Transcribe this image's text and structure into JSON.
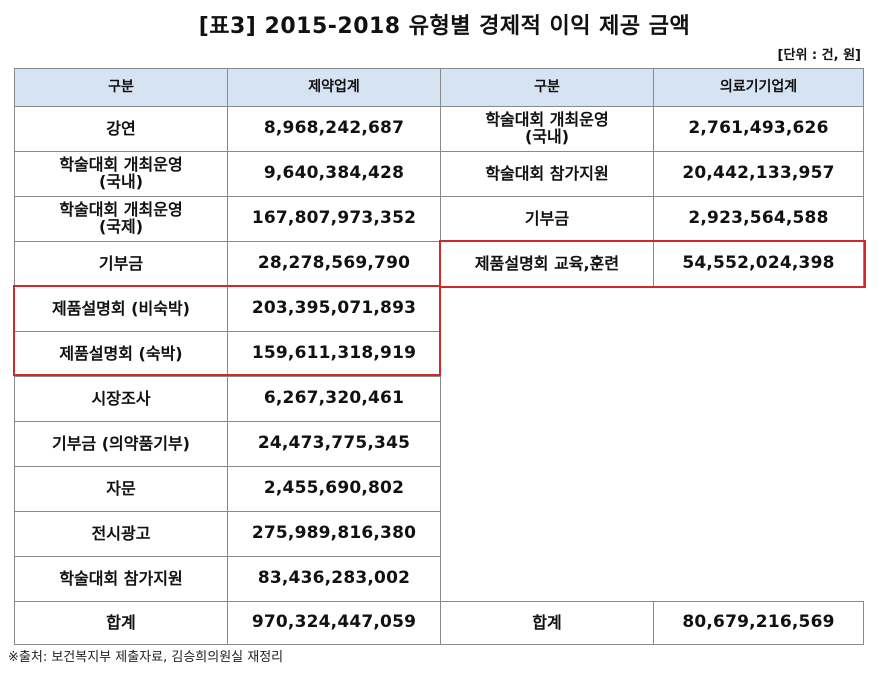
{
  "title": "[표3] 2015-2018 유형별 경제적 이익 제공 금액",
  "unit": "[단위 : 건, 원]",
  "headers": {
    "left_category": "구분",
    "left_value": "제약업계",
    "right_category": "구분",
    "right_value": "의료기기업계"
  },
  "left_rows": [
    {
      "label": "강연",
      "value": "8,968,242,687"
    },
    {
      "label": "학술대회 개최운영\n(국내)",
      "value": "9,640,384,428"
    },
    {
      "label": "학술대회 개최운영\n(국제)",
      "value": "167,807,973,352"
    },
    {
      "label": "기부금",
      "value": "28,278,569,790"
    },
    {
      "label": "제품설명회 (비숙박)",
      "value": "203,395,071,893"
    },
    {
      "label": "제품설명회 (숙박)",
      "value": "159,611,318,919"
    },
    {
      "label": "시장조사",
      "value": "6,267,320,461"
    },
    {
      "label": "기부금 (의약품기부)",
      "value": "24,473,775,345"
    },
    {
      "label": "자문",
      "value": "2,455,690,802"
    },
    {
      "label": "전시광고",
      "value": "275,989,816,380"
    },
    {
      "label": "학술대회 참가지원",
      "value": "83,436,283,002"
    }
  ],
  "right_rows": [
    {
      "label": "학술대회 개최운영\n(국내)",
      "value": "2,761,493,626"
    },
    {
      "label": "학술대회 참가지원",
      "value": "20,442,133,957"
    },
    {
      "label": "기부금",
      "value": "2,923,564,588"
    },
    {
      "label": "제품설명회 교육,훈련",
      "value": "54,552,024,398"
    }
  ],
  "totals": {
    "left_label": "합계",
    "left_value": "970,324,447,059",
    "right_label": "합계",
    "right_value": "80,679,216,569"
  },
  "source": "※출처: 보건복지부 제출자료, 김승희의원실 재정리",
  "highlight_color": "#d0292b",
  "header_color": "#d6e3f3"
}
